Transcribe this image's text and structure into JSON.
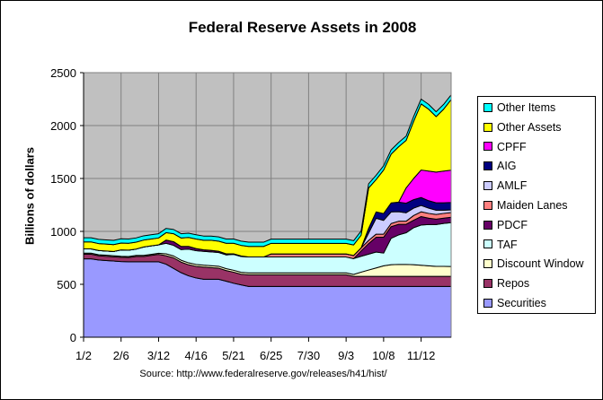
{
  "chart_data": {
    "type": "area",
    "stacked": true,
    "title": "Federal Reserve Assets in 2008",
    "ylabel": "Billions of dollars",
    "xlabel": "",
    "source": "Source:  http://www.federalreserve.gov/releases/h41/hist/",
    "ylim": [
      0,
      2500
    ],
    "yticks": [
      "0",
      "500",
      "1000",
      "1500",
      "2000",
      "2500"
    ],
    "xtick_labels": [
      "1/2",
      "2/6",
      "3/12",
      "4/16",
      "5/21",
      "6/25",
      "7/30",
      "9/3",
      "10/8",
      "11/12"
    ],
    "grid": true,
    "legend_placement": "right",
    "plot_background": "#C0C0C0",
    "x": [
      "1/2",
      "1/9",
      "1/16",
      "1/23",
      "1/30",
      "2/6",
      "2/13",
      "2/20",
      "2/27",
      "3/5",
      "3/12",
      "3/19",
      "3/26",
      "4/2",
      "4/9",
      "4/16",
      "4/23",
      "4/30",
      "5/7",
      "5/14",
      "5/21",
      "5/28",
      "6/4",
      "6/11",
      "6/18",
      "6/25",
      "7/2",
      "7/9",
      "7/16",
      "7/23",
      "7/30",
      "8/6",
      "8/13",
      "8/20",
      "8/27",
      "9/3",
      "9/10",
      "9/17",
      "9/24",
      "10/1",
      "10/8",
      "10/15",
      "10/22",
      "10/29",
      "11/5",
      "11/12",
      "11/19",
      "11/26",
      "12/3",
      "12/10"
    ],
    "series": [
      {
        "name": "Securities",
        "color": "#9999FF",
        "values": [
          740,
          740,
          730,
          725,
          720,
          715,
          713,
          713,
          713,
          713,
          713,
          690,
          650,
          610,
          580,
          560,
          548,
          548,
          548,
          530,
          510,
          495,
          480,
          480,
          480,
          480,
          480,
          480,
          480,
          480,
          480,
          480,
          480,
          480,
          480,
          480,
          480,
          480,
          480,
          480,
          480,
          480,
          480,
          480,
          480,
          480,
          480,
          480,
          480,
          480
        ]
      },
      {
        "name": "Repos",
        "color": "#993366",
        "values": [
          45,
          45,
          40,
          40,
          40,
          40,
          40,
          50,
          50,
          60,
          70,
          80,
          100,
          100,
          105,
          110,
          115,
          110,
          105,
          100,
          105,
          100,
          110,
          110,
          110,
          110,
          110,
          110,
          110,
          110,
          110,
          110,
          110,
          110,
          110,
          110,
          95,
          95,
          95,
          95,
          95,
          95,
          95,
          95,
          95,
          95,
          95,
          95,
          95,
          95
        ]
      },
      {
        "name": "Discount Window",
        "color": "#FFFFCC",
        "values": [
          10,
          10,
          10,
          10,
          10,
          10,
          10,
          10,
          10,
          10,
          10,
          18,
          18,
          18,
          18,
          18,
          18,
          18,
          18,
          18,
          18,
          18,
          18,
          18,
          18,
          18,
          18,
          18,
          18,
          18,
          18,
          18,
          18,
          18,
          18,
          18,
          18,
          40,
          60,
          80,
          100,
          110,
          112,
          112,
          110,
          105,
          100,
          95,
          95,
          93
        ]
      },
      {
        "name": "TAF",
        "color": "#CCFFFF",
        "values": [
          40,
          40,
          40,
          40,
          40,
          60,
          60,
          60,
          80,
          80,
          80,
          100,
          100,
          100,
          130,
          130,
          130,
          130,
          130,
          130,
          150,
          150,
          150,
          150,
          150,
          150,
          150,
          150,
          150,
          150,
          150,
          150,
          150,
          150,
          150,
          150,
          150,
          150,
          150,
          150,
          120,
          250,
          280,
          300,
          350,
          380,
          390,
          395,
          405,
          415
        ]
      },
      {
        "name": "PDCF",
        "color": "#660066",
        "values": [
          0,
          0,
          0,
          0,
          0,
          0,
          0,
          0,
          0,
          0,
          0,
          30,
          35,
          30,
          25,
          20,
          15,
          15,
          12,
          10,
          5,
          5,
          0,
          0,
          0,
          0,
          0,
          0,
          0,
          0,
          0,
          0,
          0,
          0,
          0,
          0,
          0,
          50,
          100,
          140,
          150,
          110,
          100,
          80,
          70,
          80,
          60,
          50,
          50,
          50
        ]
      },
      {
        "name": "Maiden Lanes",
        "color": "#FF8080",
        "values": [
          0,
          0,
          0,
          0,
          0,
          0,
          0,
          0,
          0,
          0,
          0,
          0,
          0,
          0,
          0,
          0,
          0,
          0,
          0,
          0,
          0,
          0,
          0,
          0,
          0,
          29,
          29,
          29,
          29,
          29,
          29,
          29,
          29,
          29,
          29,
          29,
          29,
          29,
          29,
          29,
          29,
          29,
          29,
          29,
          45,
          45,
          45,
          45,
          45,
          45
        ]
      },
      {
        "name": "AMLF",
        "color": "#CCCCFF",
        "values": [
          0,
          0,
          0,
          0,
          0,
          0,
          0,
          0,
          0,
          0,
          0,
          0,
          0,
          0,
          0,
          0,
          0,
          0,
          0,
          0,
          0,
          0,
          0,
          0,
          0,
          0,
          0,
          0,
          0,
          0,
          0,
          0,
          0,
          0,
          0,
          0,
          0,
          0,
          70,
          150,
          130,
          110,
          90,
          80,
          70,
          60,
          50,
          40,
          30,
          25
        ]
      },
      {
        "name": "AIG",
        "color": "#000080",
        "values": [
          0,
          0,
          0,
          0,
          0,
          0,
          0,
          0,
          0,
          0,
          0,
          0,
          0,
          0,
          0,
          0,
          0,
          0,
          0,
          0,
          0,
          0,
          0,
          0,
          0,
          0,
          0,
          0,
          0,
          0,
          0,
          0,
          0,
          0,
          0,
          0,
          0,
          0,
          45,
          60,
          65,
          85,
          90,
          90,
          80,
          75,
          70,
          70,
          70,
          70
        ]
      },
      {
        "name": "CPFF",
        "color": "#FF00FF",
        "values": [
          0,
          0,
          0,
          0,
          0,
          0,
          0,
          0,
          0,
          0,
          0,
          0,
          0,
          0,
          0,
          0,
          0,
          0,
          0,
          0,
          0,
          0,
          0,
          0,
          0,
          0,
          0,
          0,
          0,
          0,
          0,
          0,
          0,
          0,
          0,
          0,
          0,
          0,
          0,
          0,
          0,
          0,
          0,
          145,
          200,
          260,
          280,
          290,
          300,
          305
        ]
      },
      {
        "name": "Other Assets",
        "color": "#FFFF00",
        "values": [
          65,
          65,
          65,
          65,
          65,
          65,
          65,
          65,
          65,
          65,
          65,
          70,
          75,
          80,
          85,
          90,
          90,
          95,
          95,
          100,
          100,
          100,
          100,
          100,
          100,
          100,
          100,
          100,
          100,
          100,
          100,
          100,
          100,
          100,
          100,
          100,
          100,
          120,
          381,
          306,
          411,
          461,
          524,
          449,
          540,
          625,
          585,
          525,
          585,
          667
        ]
      },
      {
        "name": "Other Items",
        "color": "#00FFFF",
        "values": [
          40,
          40,
          40,
          40,
          40,
          40,
          40,
          40,
          40,
          40,
          40,
          40,
          40,
          40,
          40,
          40,
          40,
          40,
          40,
          40,
          40,
          40,
          40,
          40,
          40,
          40,
          40,
          40,
          40,
          40,
          40,
          40,
          40,
          40,
          40,
          40,
          40,
          40,
          40,
          40,
          40,
          40,
          40,
          40,
          45,
          45,
          45,
          45,
          45,
          45
        ]
      }
    ]
  }
}
